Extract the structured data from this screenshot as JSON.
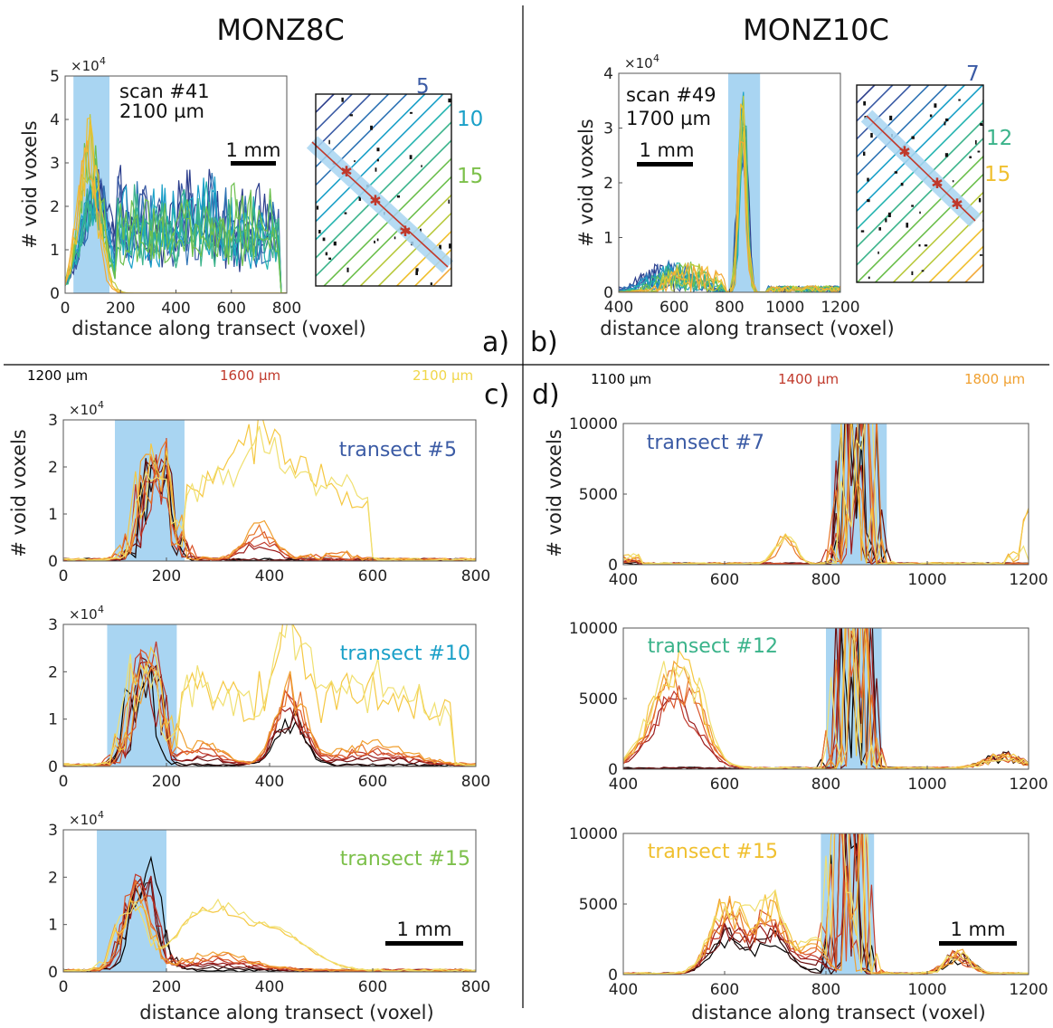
{
  "labels": {
    "monz8c": "MONZ8C",
    "monz10c": "MONZ10C",
    "scan_a_line1": "scan #41",
    "scan_a_line2": "2100 µm",
    "scan_b_line1": "scan #49",
    "scan_b_line2": "1700 µm",
    "scalebar": "1 mm",
    "ylabel": "# void voxels",
    "xlabel": "distance along transect (voxel)",
    "panel_a": "a)",
    "panel_b": "b)",
    "panel_c": "c)",
    "panel_d": "d)",
    "exp10e4": "×10",
    "exp_power": "4"
  },
  "legend_c": [
    {
      "text": "1200 µm",
      "color": "#000000"
    },
    {
      "text": "1600 µm",
      "color": "#c0392b"
    },
    {
      "text": "2100 µm",
      "color": "#f0d64a"
    }
  ],
  "legend_d": [
    {
      "text": "1100 µm",
      "color": "#000000"
    },
    {
      "text": "1400 µm",
      "color": "#c0392b"
    },
    {
      "text": "1800 µm",
      "color": "#f0a030"
    }
  ],
  "map_a_numbers": [
    {
      "text": "5",
      "color": "#3b5ba5"
    },
    {
      "text": "10",
      "color": "#1aa0c8"
    },
    {
      "text": "15",
      "color": "#7cc04a"
    }
  ],
  "map_b_numbers": [
    {
      "text": "7",
      "color": "#3b5ba5"
    },
    {
      "text": "12",
      "color": "#3ab38a"
    },
    {
      "text": "15",
      "color": "#f0c030"
    }
  ],
  "colors": {
    "highlight": "#a9d5f2",
    "scan_lines": [
      "#2c3e8c",
      "#3b5ba5",
      "#2f74b5",
      "#1aa0c8",
      "#22b3b0",
      "#3ab38a",
      "#6cbf4d",
      "#b8c93e",
      "#f0c030",
      "#f2a93a"
    ],
    "depth_lines": [
      "#000000",
      "#2a0a0a",
      "#6b0f0f",
      "#9b1b1b",
      "#c0392b",
      "#d9542a",
      "#e8762a",
      "#f0a030",
      "#f5c842",
      "#f0e070"
    ]
  },
  "chart_data": [
    {
      "id": "a",
      "type": "line",
      "ylabel": "# void voxels",
      "xlabel": "distance along transect (voxel)",
      "xlim": [
        0,
        800
      ],
      "ylim": [
        0,
        50000
      ],
      "xticks": [
        0,
        200,
        400,
        600,
        800
      ],
      "yticks": [
        0,
        10000,
        20000,
        30000,
        40000,
        50000
      ],
      "ytick_labels": [
        "0",
        "1",
        "2",
        "3",
        "4",
        "5"
      ],
      "highlight": [
        30,
        160
      ],
      "series_count": 16
    },
    {
      "id": "b",
      "type": "line",
      "ylabel": "# void voxels",
      "xlabel": "distance along transect (voxel)",
      "xlim": [
        400,
        1200
      ],
      "ylim": [
        0,
        40000
      ],
      "xticks": [
        400,
        600,
        800,
        1000,
        1200
      ],
      "yticks": [
        0,
        10000,
        20000,
        30000,
        40000
      ],
      "ytick_labels": [
        "0",
        "1",
        "2",
        "3",
        "4"
      ],
      "highlight": [
        795,
        910
      ],
      "series_count": 14
    },
    {
      "id": "c1",
      "type": "line",
      "title": "transect #5",
      "title_color": "#3b5ba5",
      "ylabel": "# void voxels",
      "xlim": [
        0,
        800
      ],
      "ylim": [
        0,
        30000
      ],
      "xticks": [
        0,
        200,
        400,
        600,
        800
      ],
      "yticks": [
        0,
        10000,
        20000,
        30000
      ],
      "ytick_labels": [
        "0",
        "1",
        "2",
        "3"
      ],
      "highlight": [
        100,
        235
      ],
      "series_count": 10
    },
    {
      "id": "c2",
      "type": "line",
      "title": "transect #10",
      "title_color": "#1aa0c8",
      "xlim": [
        0,
        800
      ],
      "ylim": [
        0,
        30000
      ],
      "xticks": [
        0,
        200,
        400,
        600,
        800
      ],
      "yticks": [
        0,
        10000,
        20000,
        30000
      ],
      "ytick_labels": [
        "0",
        "1",
        "2",
        "3"
      ],
      "highlight": [
        85,
        220
      ],
      "series_count": 10
    },
    {
      "id": "c3",
      "type": "line",
      "title": "transect #15",
      "title_color": "#7cc04a",
      "xlabel": "distance along transect (voxel)",
      "xlim": [
        0,
        800
      ],
      "ylim": [
        0,
        30000
      ],
      "xticks": [
        0,
        200,
        400,
        600,
        800
      ],
      "yticks": [
        0,
        10000,
        20000,
        30000
      ],
      "ytick_labels": [
        "0",
        "1",
        "2",
        "3"
      ],
      "highlight": [
        65,
        200
      ],
      "series_count": 10
    },
    {
      "id": "d1",
      "type": "line",
      "title": "transect #7",
      "title_color": "#3b5ba5",
      "ylabel": "# void voxels",
      "xlim": [
        400,
        1200
      ],
      "ylim": [
        0,
        10000
      ],
      "xticks": [
        400,
        600,
        800,
        1000,
        1200
      ],
      "yticks": [
        0,
        5000,
        10000
      ],
      "ytick_labels": [
        "0",
        "5000",
        "10000"
      ],
      "highlight": [
        810,
        920
      ],
      "series_count": 10
    },
    {
      "id": "d2",
      "type": "line",
      "title": "transect #12",
      "title_color": "#3ab38a",
      "xlim": [
        400,
        1200
      ],
      "ylim": [
        0,
        10000
      ],
      "xticks": [
        400,
        600,
        800,
        1000,
        1200
      ],
      "yticks": [
        0,
        5000,
        10000
      ],
      "ytick_labels": [
        "0",
        "5000",
        "10000"
      ],
      "highlight": [
        800,
        910
      ],
      "series_count": 10
    },
    {
      "id": "d3",
      "type": "line",
      "title": "transect #15",
      "title_color": "#f0c030",
      "xlabel": "distance along transect (voxel)",
      "xlim": [
        400,
        1200
      ],
      "ylim": [
        0,
        10000
      ],
      "xticks": [
        400,
        600,
        800,
        1000,
        1200
      ],
      "yticks": [
        0,
        5000,
        10000
      ],
      "ytick_labels": [
        "0",
        "5000",
        "10000"
      ],
      "highlight": [
        790,
        895
      ],
      "series_count": 10
    }
  ]
}
